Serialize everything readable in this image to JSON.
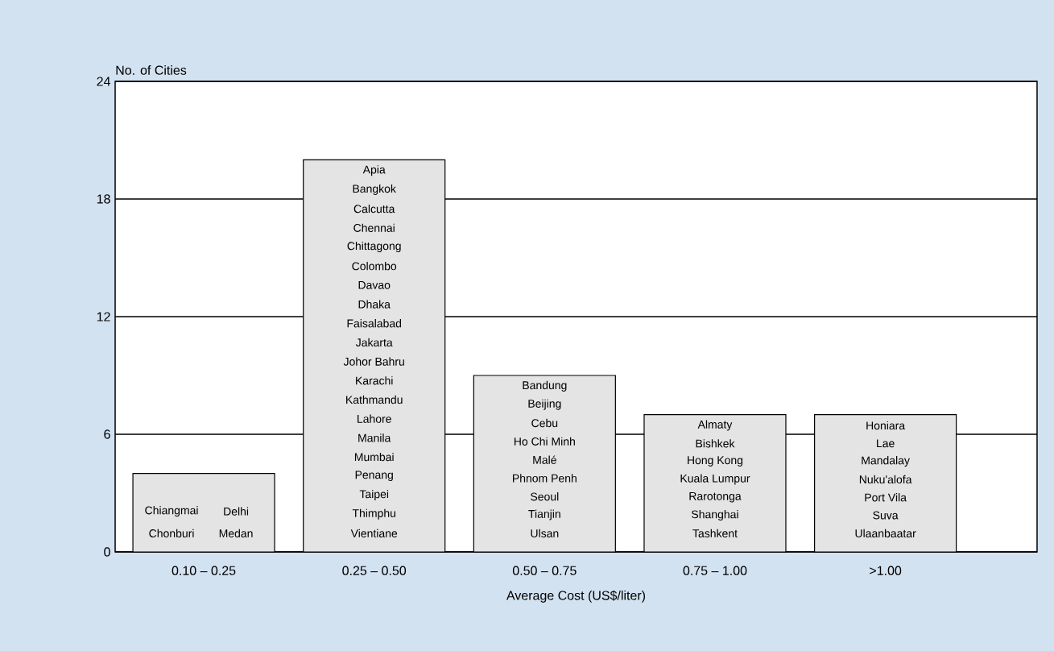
{
  "chart_data": {
    "type": "bar",
    "ylabel": "No. of Cities",
    "xlabel": "Average Cost (US$/liter)",
    "categories": [
      "0.10 – 0.25",
      "0.25 – 0.50",
      "0.50 – 0.75",
      "0.75 – 1.00",
      ">1.00"
    ],
    "values": [
      4,
      20,
      9,
      7,
      7
    ],
    "color": "#e4e4e4",
    "ylim": [
      0,
      24
    ],
    "yticks": [
      0,
      6,
      12,
      18,
      24
    ],
    "grid": "y",
    "annotations": [
      "Chiangmai",
      "Delhi",
      "Chonburi",
      "Medan",
      "Apia",
      "Bangkok",
      "Calcutta",
      "Chennai",
      "Chittagong",
      "Colombo",
      "Davao",
      "Dhaka",
      "Faisalabad",
      "Jakarta",
      "Johor Bahru",
      "Karachi",
      "Kathmandu",
      "Lahore",
      "Manila",
      "Mumbai",
      "Penang",
      "Taipei",
      "Thimphu",
      "Vientiane",
      "Bandung",
      "Beijing",
      "Cebu",
      "Ho Chi Minh",
      "Malé",
      "Phnom Penh",
      "Seoul",
      "Tianjin",
      "Ulsan",
      "Almaty",
      "Bishkek",
      "Hong Kong",
      "Kuala Lumpur",
      "Rarotonga",
      "Shanghai",
      "Tashkent",
      "Honiara",
      "Lae",
      "Mandalay",
      "Nuku'alofa",
      "Port Vila",
      "Suva",
      "Ulaanbaatar"
    ]
  }
}
